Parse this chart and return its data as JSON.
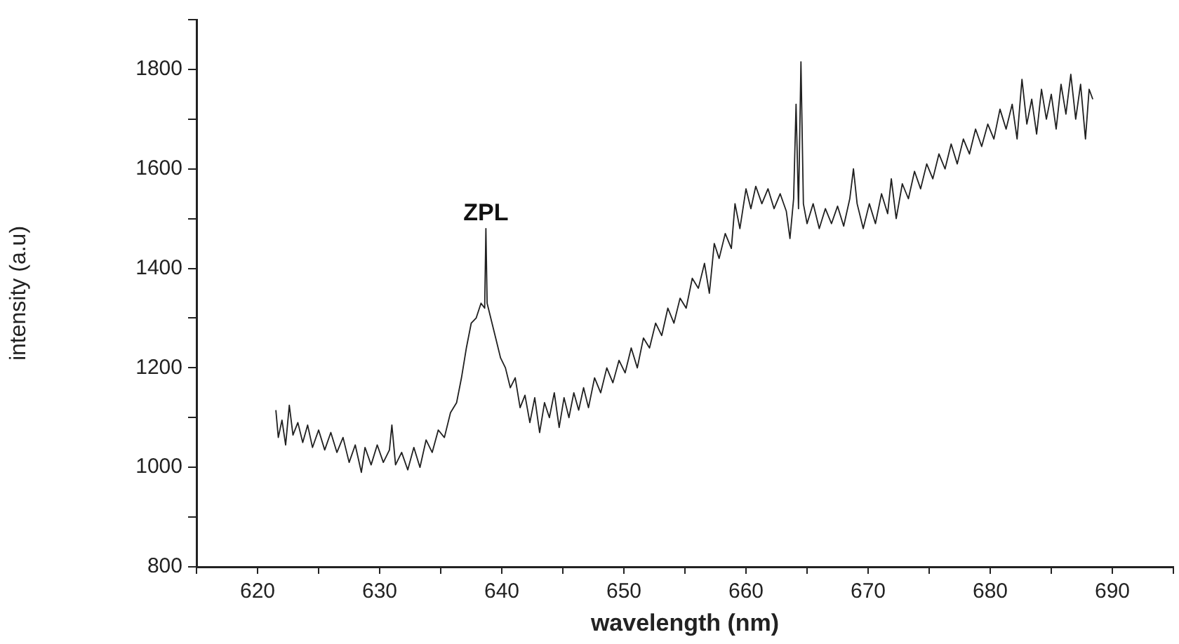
{
  "chart_data": {
    "type": "line",
    "xlabel": "wavelength (nm)",
    "ylabel": "intensity (a.u)",
    "annotations": [
      {
        "text": "ZPL",
        "x": 638.7,
        "y": 1480
      }
    ],
    "xlim": [
      615,
      695
    ],
    "ylim": [
      800,
      1900
    ],
    "xticks": [
      {
        "value": 615,
        "label": null
      },
      620,
      {
        "value": 625,
        "label": null
      },
      630,
      {
        "value": 635,
        "label": null
      },
      640,
      {
        "value": 645,
        "label": null
      },
      650,
      {
        "value": 655,
        "label": null
      },
      660,
      {
        "value": 665,
        "label": null
      },
      670,
      {
        "value": 675,
        "label": null
      },
      680,
      {
        "value": 685,
        "label": null
      },
      690,
      {
        "value": 695,
        "label": null
      }
    ],
    "yticks": [
      800,
      {
        "value": 900,
        "label": null
      },
      1000,
      {
        "value": 1100,
        "label": null
      },
      1200,
      {
        "value": 1300,
        "label": null
      },
      1400,
      {
        "value": 1500,
        "label": null
      },
      1600,
      {
        "value": 1700,
        "label": null
      },
      1800,
      {
        "value": 1900,
        "label": null
      }
    ],
    "grid": false,
    "legend": false,
    "marker": "none",
    "line_style": "solid",
    "series": [
      {
        "color": "#202020",
        "x": [
          621.5,
          621.7,
          622.0,
          622.3,
          622.6,
          622.9,
          623.3,
          623.7,
          624.1,
          624.5,
          625.0,
          625.5,
          626.0,
          626.5,
          627.0,
          627.5,
          628.0,
          628.5,
          628.8,
          629.3,
          629.8,
          630.3,
          630.8,
          631.0,
          631.3,
          631.8,
          632.3,
          632.8,
          633.3,
          633.8,
          634.3,
          634.8,
          635.3,
          635.8,
          636.3,
          636.7,
          637.1,
          637.5,
          637.9,
          638.3,
          638.6,
          638.7,
          638.8,
          639.1,
          639.5,
          639.9,
          640.3,
          640.7,
          641.1,
          641.5,
          641.9,
          642.3,
          642.7,
          643.1,
          643.5,
          643.9,
          644.3,
          644.7,
          645.1,
          645.5,
          645.9,
          646.3,
          646.7,
          647.1,
          647.6,
          648.1,
          648.6,
          649.1,
          649.6,
          650.1,
          650.6,
          651.1,
          651.6,
          652.1,
          652.6,
          653.1,
          653.6,
          654.1,
          654.6,
          655.1,
          655.6,
          656.1,
          656.6,
          657.0,
          657.4,
          657.8,
          658.3,
          658.8,
          659.1,
          659.5,
          660.0,
          660.4,
          660.8,
          661.3,
          661.8,
          662.3,
          662.8,
          663.3,
          663.6,
          663.9,
          664.1,
          664.3,
          664.5,
          664.7,
          665.0,
          665.5,
          666.0,
          666.5,
          667.0,
          667.5,
          668.0,
          668.5,
          668.8,
          669.1,
          669.6,
          670.1,
          670.6,
          671.1,
          671.6,
          671.9,
          672.3,
          672.8,
          673.3,
          673.8,
          674.3,
          674.8,
          675.3,
          675.8,
          676.3,
          676.8,
          677.3,
          677.8,
          678.3,
          678.8,
          679.3,
          679.8,
          680.3,
          680.8,
          681.3,
          681.8,
          682.2,
          682.6,
          683.0,
          683.4,
          683.8,
          684.2,
          684.6,
          685.0,
          685.4,
          685.8,
          686.2,
          686.6,
          687.0,
          687.4,
          687.8,
          688.1,
          688.4
        ],
        "values": [
          1115,
          1060,
          1095,
          1045,
          1125,
          1065,
          1090,
          1050,
          1085,
          1040,
          1075,
          1035,
          1070,
          1030,
          1060,
          1010,
          1045,
          990,
          1040,
          1005,
          1045,
          1010,
          1035,
          1085,
          1005,
          1030,
          995,
          1040,
          1000,
          1055,
          1030,
          1075,
          1060,
          1110,
          1130,
          1180,
          1240,
          1290,
          1300,
          1330,
          1320,
          1480,
          1330,
          1300,
          1260,
          1220,
          1200,
          1160,
          1180,
          1120,
          1145,
          1090,
          1140,
          1070,
          1130,
          1100,
          1150,
          1080,
          1140,
          1100,
          1150,
          1115,
          1160,
          1120,
          1180,
          1150,
          1200,
          1170,
          1215,
          1190,
          1240,
          1200,
          1260,
          1240,
          1290,
          1265,
          1320,
          1290,
          1340,
          1320,
          1380,
          1360,
          1410,
          1350,
          1450,
          1420,
          1470,
          1440,
          1530,
          1480,
          1560,
          1520,
          1565,
          1530,
          1560,
          1520,
          1550,
          1515,
          1460,
          1540,
          1730,
          1520,
          1815,
          1530,
          1490,
          1530,
          1480,
          1520,
          1490,
          1525,
          1485,
          1540,
          1600,
          1530,
          1480,
          1530,
          1490,
          1550,
          1510,
          1580,
          1500,
          1570,
          1540,
          1595,
          1560,
          1610,
          1580,
          1630,
          1600,
          1650,
          1610,
          1660,
          1630,
          1680,
          1645,
          1690,
          1660,
          1720,
          1680,
          1730,
          1660,
          1780,
          1690,
          1740,
          1670,
          1760,
          1700,
          1750,
          1680,
          1770,
          1710,
          1790,
          1700,
          1770,
          1660,
          1760,
          1740
        ]
      }
    ]
  }
}
